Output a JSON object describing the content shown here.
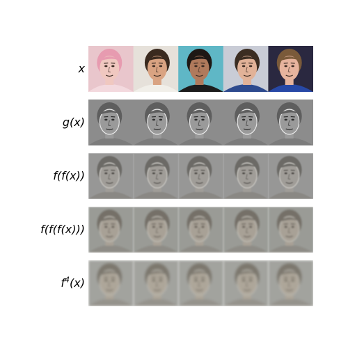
{
  "figure": {
    "rows": [
      {
        "id": "input",
        "label_pre": "x",
        "label_sup": "",
        "label_post": "",
        "style": "color"
      },
      {
        "id": "g",
        "label_pre": "g(x)",
        "label_sup": "",
        "label_post": "",
        "style": "edge"
      },
      {
        "id": "f2",
        "label_pre": "f(f(x))",
        "label_sup": "",
        "label_post": "",
        "style": "blur1"
      },
      {
        "id": "f3",
        "label_pre": "f(f(f(x)))",
        "label_sup": "",
        "label_post": "",
        "style": "blur2"
      },
      {
        "id": "f4",
        "label_pre": "f",
        "label_sup": "4",
        "label_post": "(x)",
        "style": "blur3"
      }
    ],
    "faces": [
      {
        "id": "face-1",
        "bg": "#e9c6cc",
        "skin": "#f0c8c0",
        "hair": "#e79bb0",
        "shirt": "#f3d9de"
      },
      {
        "id": "face-2",
        "bg": "#e6e1da",
        "skin": "#d9a382",
        "hair": "#3a2a1f",
        "shirt": "#f1efe9"
      },
      {
        "id": "face-3",
        "bg": "#5fb7c6",
        "skin": "#b07a5c",
        "hair": "#1e1814",
        "shirt": "#1c1c1c"
      },
      {
        "id": "face-4",
        "bg": "#c9ccd6",
        "skin": "#e1b298",
        "hair": "#3b2d22",
        "shirt": "#2d4a8e"
      },
      {
        "id": "face-5",
        "bg": "#2a2840",
        "skin": "#e7b49e",
        "hair": "#7a5a3a",
        "shirt": "#2748a6"
      }
    ]
  }
}
